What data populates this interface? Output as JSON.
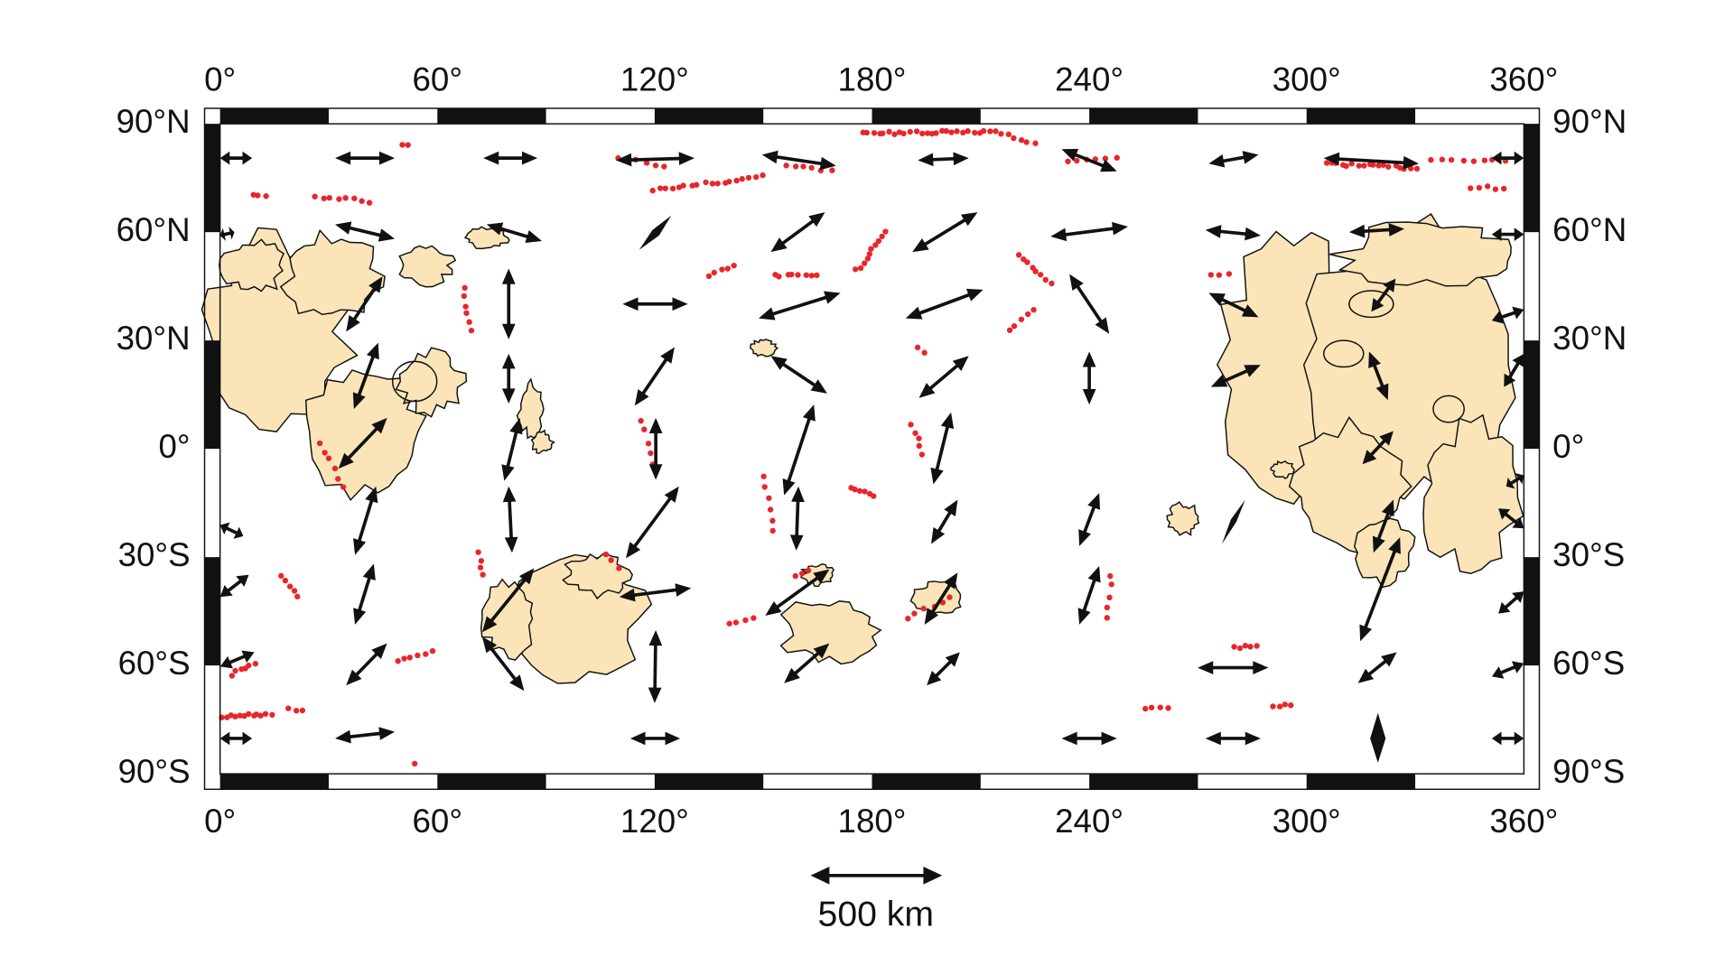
{
  "map": {
    "longitude_labels": [
      "0°",
      "60°",
      "120°",
      "180°",
      "240°",
      "300°",
      "360°"
    ],
    "latitude_labels": [
      "90°N",
      "60°N",
      "30°N",
      "0°",
      "30°S",
      "60°S",
      "90°S"
    ],
    "scale_label": "500 km"
  }
}
